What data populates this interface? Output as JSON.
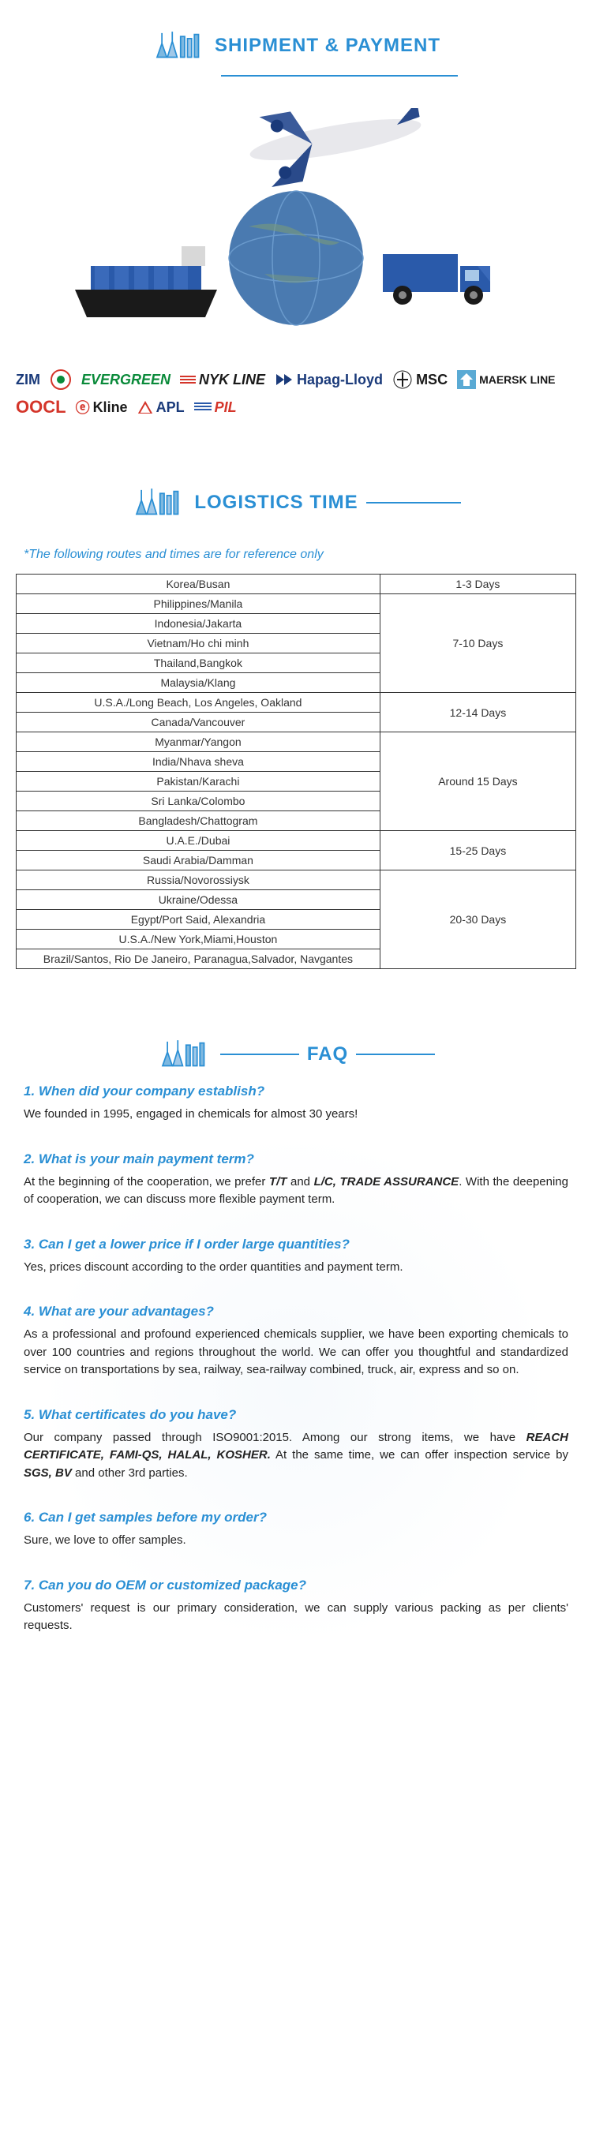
{
  "colors": {
    "accent": "#2a8fd4",
    "text": "#333333",
    "border": "#333333",
    "green": "#0a8a3a",
    "red": "#d4352a",
    "navy": "#1a3a7a",
    "white": "#ffffff"
  },
  "sections": {
    "shipment": {
      "title": "SHIPMENT & PAYMENT"
    },
    "logistics": {
      "title": "LOGISTICS TIME"
    },
    "faq": {
      "title": "FAQ"
    }
  },
  "reference_note": "*The following routes and times are for reference only",
  "carriers": [
    "ZIM",
    "EVERGREEN",
    "NYK LINE",
    "Hapag-Lloyd",
    "MSC",
    "MAERSK LINE",
    "OOCL",
    "Kline",
    "APL",
    "PIL"
  ],
  "logistics": {
    "groups": [
      {
        "time": "1-3 Days",
        "routes": [
          "Korea/Busan"
        ]
      },
      {
        "time": "7-10 Days",
        "routes": [
          "Philippines/Manila",
          "Indonesia/Jakarta",
          "Vietnam/Ho chi minh",
          "Thailand,Bangkok",
          "Malaysia/Klang"
        ]
      },
      {
        "time": "12-14 Days",
        "routes": [
          "U.S.A./Long Beach, Los Angeles, Oakland",
          "Canada/Vancouver"
        ]
      },
      {
        "time": "Around 15 Days",
        "routes": [
          "Myanmar/Yangon",
          "India/Nhava sheva",
          "Pakistan/Karachi",
          "Sri Lanka/Colombo",
          "Bangladesh/Chattogram"
        ]
      },
      {
        "time": "15-25 Days",
        "routes": [
          "U.A.E./Dubai",
          "Saudi Arabia/Damman"
        ]
      },
      {
        "time": "20-30 Days",
        "routes": [
          "Russia/Novorossiysk",
          "Ukraine/Odessa",
          "Egypt/Port Said, Alexandria",
          "U.S.A./New York,Miami,Houston",
          "Brazil/Santos, Rio De Janeiro, Paranagua,Salvador, Navgantes"
        ]
      }
    ]
  },
  "faqs": [
    {
      "q": "1. When did your company establish?",
      "a": "We founded in 1995, engaged in chemicals for almost 30 years!"
    },
    {
      "q": "2. What is your main payment term?",
      "a_html": "At the beginning of the cooperation, we prefer <strong>T/T</strong> and <strong>L/C, TRADE ASSURANCE</strong>. With the deepening of cooperation, we can discuss more flexible payment term."
    },
    {
      "q": "3. Can I get a lower price if I order large quantities?",
      "a": "Yes, prices discount according to the order quantities and payment term."
    },
    {
      "q": "4. What are your advantages?",
      "a": "As a professional and profound experienced chemicals supplier, we have been exporting chemicals to over 100 countries and regions throughout the world. We can offer you thoughtful and standardized service on transportations by sea, railway, sea-railway combined, truck, air, express and so on."
    },
    {
      "q": "5. What certificates do you have?",
      "a_html": "Our company passed through ISO9001:2015. Among our strong items, we have <strong>REACH CERTIFICATE, FAMI-QS, HALAL, KOSHER.</strong> At the same time, we can offer inspection service by <strong>SGS, BV</strong> and other 3rd parties."
    },
    {
      "q": "6. Can I get samples before my order?",
      "a": "Sure, we love to offer samples."
    },
    {
      "q": "7. Can you do OEM or customized package?",
      "a": "Customers' request is our primary consideration, we can supply various packing as per clients' requests."
    }
  ]
}
